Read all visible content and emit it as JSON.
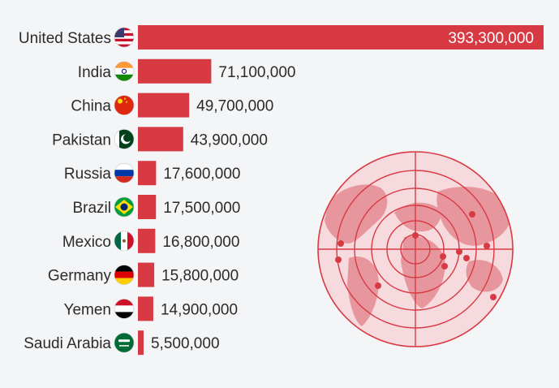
{
  "chart_data": {
    "type": "bar",
    "orientation": "horizontal",
    "categories": [
      "United States",
      "India",
      "China",
      "Pakistan",
      "Russia",
      "Brazil",
      "Mexico",
      "Germany",
      "Yemen",
      "Saudi Arabia"
    ],
    "values": [
      393300000,
      71100000,
      49700000,
      43900000,
      17600000,
      17500000,
      16800000,
      15800000,
      14900000,
      5500000
    ],
    "value_labels": [
      "393,300,000",
      "71,100,000",
      "49,700,000",
      "43,900,000",
      "17,600,000",
      "17,500,000",
      "16,800,000",
      "15,800,000",
      "14,900,000",
      "5,500,000"
    ],
    "flags": [
      "us-flag-icon",
      "india-flag-icon",
      "china-flag-icon",
      "pakistan-flag-icon",
      "russia-flag-icon",
      "brazil-flag-icon",
      "mexico-flag-icon",
      "germany-flag-icon",
      "yemen-flag-icon",
      "saudi-arabia-flag-icon"
    ],
    "title": "",
    "xlabel": "",
    "ylabel": "",
    "xlim": [
      0,
      393300000
    ],
    "grid": false,
    "legend": "none",
    "bar_color": "#d83a44",
    "decoration": "target-world-map-icon"
  }
}
